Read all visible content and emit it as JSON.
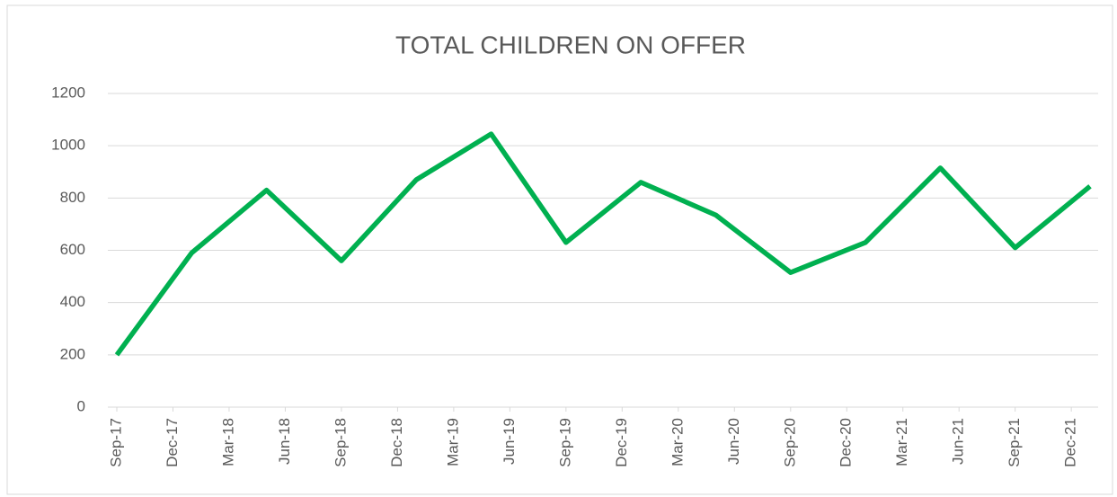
{
  "chart_data": {
    "type": "line",
    "title": "TOTAL CHILDREN ON OFFER",
    "x": [
      "2017-09",
      "2018-01",
      "2018-05",
      "2018-09",
      "2019-01",
      "2019-05",
      "2019-09",
      "2020-01",
      "2020-05",
      "2020-09",
      "2021-01",
      "2021-05",
      "2021-09",
      "2022-01"
    ],
    "series": [
      {
        "name": "Total children on offer",
        "color": "#00b050",
        "values": [
          200,
          590,
          830,
          560,
          870,
          1045,
          630,
          860,
          735,
          515,
          630,
          915,
          610,
          845
        ]
      }
    ],
    "xlim": [
      "2017-09",
      "2022-01"
    ],
    "xticks": [
      {
        "value": "2017-09",
        "label": "Sep-17"
      },
      {
        "value": "2017-12",
        "label": "Dec-17"
      },
      {
        "value": "2018-03",
        "label": "Mar-18"
      },
      {
        "value": "2018-06",
        "label": "Jun-18"
      },
      {
        "value": "2018-09",
        "label": "Sep-18"
      },
      {
        "value": "2018-12",
        "label": "Dec-18"
      },
      {
        "value": "2019-03",
        "label": "Mar-19"
      },
      {
        "value": "2019-06",
        "label": "Jun-19"
      },
      {
        "value": "2019-09",
        "label": "Sep-19"
      },
      {
        "value": "2019-12",
        "label": "Dec-19"
      },
      {
        "value": "2020-03",
        "label": "Mar-20"
      },
      {
        "value": "2020-06",
        "label": "Jun-20"
      },
      {
        "value": "2020-09",
        "label": "Sep-20"
      },
      {
        "value": "2020-12",
        "label": "Dec-20"
      },
      {
        "value": "2021-03",
        "label": "Mar-21"
      },
      {
        "value": "2021-06",
        "label": "Jun-21"
      },
      {
        "value": "2021-09",
        "label": "Sep-21"
      },
      {
        "value": "2021-12",
        "label": "Dec-21"
      }
    ],
    "ylim": [
      0,
      1200
    ],
    "yticks": [
      0,
      200,
      400,
      600,
      800,
      1000,
      1200
    ],
    "grid": true
  }
}
